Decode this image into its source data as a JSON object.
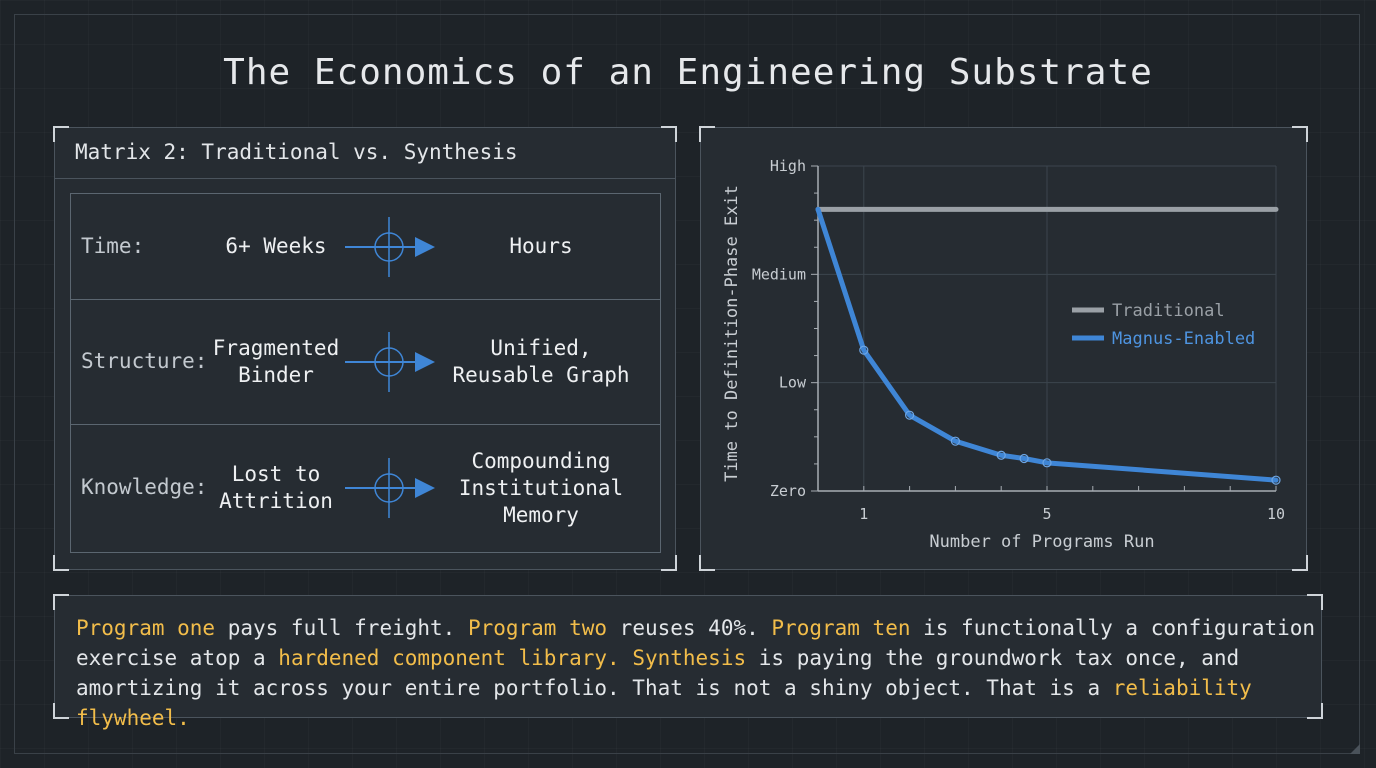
{
  "title": "The Economics of an Engineering Substrate",
  "matrix": {
    "title": "Matrix 2: Traditional vs. Synthesis",
    "rows": [
      {
        "label": "Time:",
        "from": "6+ Weeks",
        "to": "Hours"
      },
      {
        "label": "Structure:",
        "from": "Fragmented\nBinder",
        "to": "Unified,\nReusable Graph"
      },
      {
        "label": "Knowledge:",
        "from": "Lost to\nAttrition",
        "to": "Compounding\nInstitutional\nMemory"
      }
    ],
    "arrow_icon": "crosshair-arrow-icon",
    "accent_color": "#3f86d6"
  },
  "chart_data": {
    "type": "line",
    "xlabel": "Number of Programs Run",
    "ylabel": "Time to Definition-Phase Exit",
    "x_ticks": [
      1,
      5,
      10
    ],
    "y_ticks": [
      "Zero",
      "Low",
      "Medium",
      "High"
    ],
    "xlim": [
      0,
      10
    ],
    "ylim": [
      0,
      3
    ],
    "grid": true,
    "legend_position": "right",
    "series": [
      {
        "name": "Traditional",
        "color": "#9aa0a6",
        "x": [
          0,
          10
        ],
        "y": [
          2.6,
          2.6
        ]
      },
      {
        "name": "Magnus-Enabled",
        "color": "#3f86d6",
        "x": [
          0,
          1,
          2,
          3,
          4,
          4.5,
          5,
          10
        ],
        "y": [
          2.6,
          1.3,
          0.7,
          0.46,
          0.33,
          0.3,
          0.26,
          0.1
        ]
      }
    ]
  },
  "summary": {
    "segments": [
      {
        "text": "Program one",
        "hl": true
      },
      {
        "text": " pays full freight. ",
        "hl": false
      },
      {
        "text": "Program two",
        "hl": true
      },
      {
        "text": " reuses 40%. ",
        "hl": false
      },
      {
        "text": "Program ten",
        "hl": true
      },
      {
        "text": " is functionally a configuration exercise atop a ",
        "hl": false
      },
      {
        "text": "hardened component library.",
        "hl": true
      },
      {
        "text": " ",
        "hl": false
      },
      {
        "text": "Synthesis",
        "hl": true
      },
      {
        "text": " is paying the groundwork tax once, and amortizing it across your entire portfolio. That is not a shiny object. That is a ",
        "hl": false
      },
      {
        "text": "reliability flywheel.",
        "hl": true
      }
    ],
    "highlight_color": "#f2bd4a"
  }
}
